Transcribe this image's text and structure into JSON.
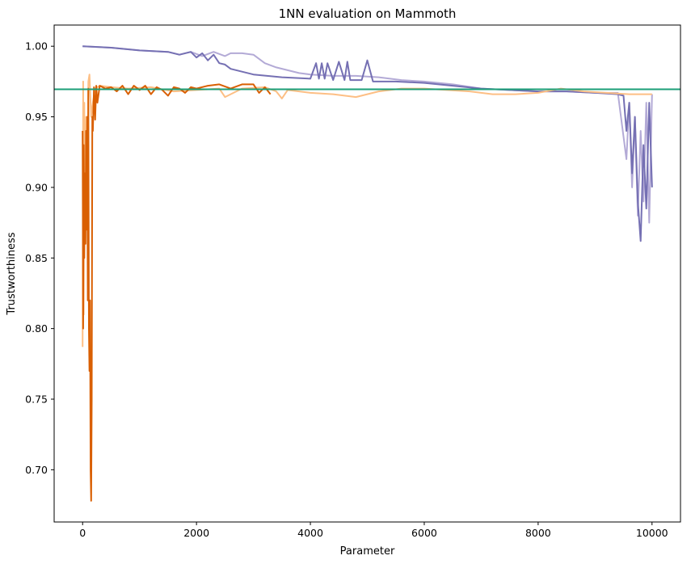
{
  "chart_data": {
    "type": "line",
    "title": "1NN evaluation on Mammoth",
    "xlabel": "Parameter",
    "ylabel": "Trustworthiness",
    "xlim": [
      -500,
      10500
    ],
    "ylim": [
      0.663,
      1.015
    ],
    "xticks": [
      0,
      2000,
      4000,
      6000,
      8000,
      10000
    ],
    "xtick_labels": [
      "0",
      "2000",
      "4000",
      "6000",
      "8000",
      "10000"
    ],
    "yticks": [
      0.7,
      0.75,
      0.8,
      0.85,
      0.9,
      0.95,
      1.0
    ],
    "ytick_labels": [
      "0.70",
      "0.75",
      "0.80",
      "0.85",
      "0.90",
      "0.95",
      "1.00"
    ],
    "grid": false,
    "legend": "none",
    "reference_line": {
      "y": 0.9695,
      "color": "#1b9e77"
    },
    "series": [
      {
        "color": "#b3aad6",
        "x": [
          0,
          500,
          1000,
          1500,
          1700,
          1900,
          2100,
          2300,
          2500,
          2600,
          2800,
          3000,
          3200,
          3400,
          3600,
          3800,
          4000,
          4400,
          4800,
          5200,
          5600,
          6000,
          6500,
          7000,
          7500,
          8000,
          8500,
          9000,
          9400,
          9550,
          9600,
          9650,
          9700,
          9750,
          9800,
          9850,
          9900,
          9950,
          10000
        ],
        "y": [
          1.0,
          0.999,
          0.997,
          0.996,
          0.994,
          0.996,
          0.993,
          0.996,
          0.993,
          0.995,
          0.995,
          0.994,
          0.988,
          0.985,
          0.983,
          0.981,
          0.98,
          0.979,
          0.979,
          0.978,
          0.976,
          0.975,
          0.973,
          0.97,
          0.969,
          0.968,
          0.968,
          0.967,
          0.967,
          0.92,
          0.96,
          0.9,
          0.95,
          0.88,
          0.94,
          0.89,
          0.96,
          0.875,
          0.966
        ]
      },
      {
        "color": "#7570b3",
        "x": [
          0,
          500,
          1000,
          1500,
          1700,
          1900,
          2000,
          2100,
          2200,
          2300,
          2400,
          2500,
          2600,
          3000,
          3500,
          4000,
          4100,
          4150,
          4200,
          4250,
          4300,
          4400,
          4500,
          4600,
          4650,
          4700,
          4800,
          4900,
          5000,
          5100,
          5500,
          6000,
          6500,
          7000,
          7500,
          8000,
          8500,
          9000,
          9400,
          9500,
          9550,
          9600,
          9650,
          9700,
          9750,
          9800,
          9850,
          9900,
          9950,
          10000
        ],
        "y": [
          1.0,
          0.999,
          0.997,
          0.996,
          0.994,
          0.996,
          0.992,
          0.995,
          0.99,
          0.994,
          0.988,
          0.987,
          0.984,
          0.98,
          0.978,
          0.977,
          0.988,
          0.977,
          0.988,
          0.977,
          0.988,
          0.976,
          0.989,
          0.976,
          0.989,
          0.976,
          0.976,
          0.976,
          0.99,
          0.975,
          0.975,
          0.974,
          0.972,
          0.97,
          0.969,
          0.968,
          0.968,
          0.967,
          0.966,
          0.965,
          0.94,
          0.96,
          0.91,
          0.95,
          0.89,
          0.862,
          0.93,
          0.885,
          0.96,
          0.9
        ]
      },
      {
        "color": "#fdbf85",
        "x": [
          0,
          10,
          20,
          30,
          40,
          60,
          80,
          100,
          120,
          150,
          180,
          220,
          300,
          500,
          800,
          1200,
          1600,
          2000,
          2400,
          2500,
          2800,
          3200,
          3400,
          3500,
          3600,
          3800,
          4000,
          4400,
          4800,
          5200,
          5600,
          6000,
          6400,
          6800,
          7200,
          7600,
          8000,
          8400,
          8800,
          9200,
          9600,
          10000
        ],
        "y": [
          0.787,
          0.975,
          0.81,
          0.96,
          0.86,
          0.95,
          0.9,
          0.975,
          0.98,
          0.95,
          0.96,
          0.97,
          0.972,
          0.971,
          0.97,
          0.971,
          0.968,
          0.969,
          0.97,
          0.964,
          0.97,
          0.971,
          0.968,
          0.963,
          0.969,
          0.968,
          0.967,
          0.966,
          0.964,
          0.968,
          0.97,
          0.97,
          0.969,
          0.968,
          0.966,
          0.966,
          0.967,
          0.97,
          0.968,
          0.967,
          0.966,
          0.966
        ]
      },
      {
        "color": "#d95f02",
        "x": [
          0,
          10,
          20,
          30,
          40,
          50,
          60,
          70,
          80,
          90,
          100,
          110,
          120,
          130,
          140,
          150,
          160,
          170,
          180,
          200,
          220,
          240,
          260,
          300,
          400,
          500,
          600,
          700,
          800,
          900,
          1000,
          1100,
          1200,
          1300,
          1400,
          1500,
          1600,
          1700,
          1800,
          1900,
          2000,
          2200,
          2400,
          2600,
          2800,
          3000,
          3100,
          3200,
          3300
        ],
        "y": [
          0.94,
          0.8,
          0.93,
          0.85,
          0.91,
          0.86,
          0.94,
          0.87,
          0.95,
          0.82,
          0.97,
          0.8,
          0.77,
          0.82,
          0.7,
          0.678,
          0.75,
          0.95,
          0.94,
          0.971,
          0.948,
          0.972,
          0.96,
          0.972,
          0.97,
          0.971,
          0.968,
          0.972,
          0.966,
          0.972,
          0.969,
          0.972,
          0.966,
          0.971,
          0.969,
          0.965,
          0.971,
          0.97,
          0.967,
          0.971,
          0.97,
          0.972,
          0.973,
          0.97,
          0.973,
          0.973,
          0.967,
          0.971,
          0.966
        ]
      }
    ]
  }
}
